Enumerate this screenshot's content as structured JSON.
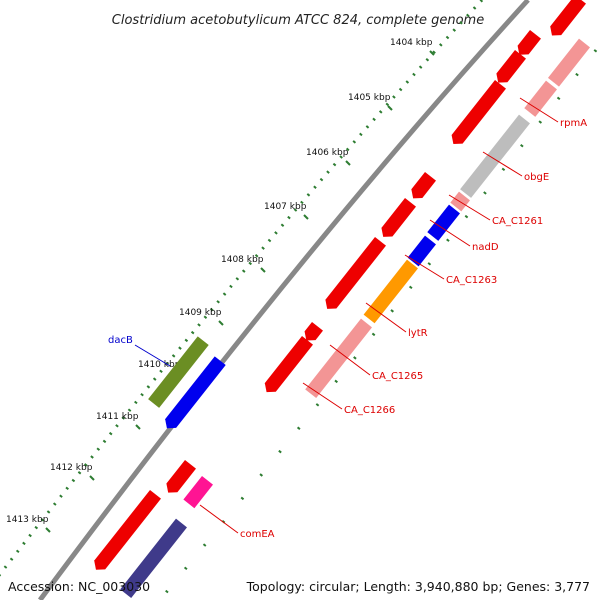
{
  "title": "Clostridium acetobutylicum ATCC 824, complete genome",
  "ticks": [
    "1404 kbp",
    "1405 kbp",
    "1406 kbp",
    "1407 kbp",
    "1408 kbp",
    "1409 kbp",
    "1410 kbp",
    "1411 kbp",
    "1412 kbp",
    "1413 kbp"
  ],
  "genes": [
    {
      "name": "rpmA",
      "color": "#dd0000"
    },
    {
      "name": "obgE",
      "color": "#dd0000"
    },
    {
      "name": "CA_C1261",
      "color": "#dd0000"
    },
    {
      "name": "nadD",
      "color": "#dd0000"
    },
    {
      "name": "CA_C1263",
      "color": "#dd0000"
    },
    {
      "name": "lytR",
      "color": "#dd0000"
    },
    {
      "name": "CA_C1265",
      "color": "#dd0000"
    },
    {
      "name": "CA_C1266",
      "color": "#dd0000"
    },
    {
      "name": "comEA",
      "color": "#dd0000"
    },
    {
      "name": "dacB",
      "color": "#0000cc"
    }
  ],
  "colors": {
    "cds": "#ee0000",
    "cds_light": "#f39595",
    "grey": "#bdbdbd",
    "blue": "#0000ee",
    "orange": "#ff9900",
    "olive": "#6b8e23",
    "magenta": "#ff1493",
    "navy": "#3f3a8a",
    "tick": "#2e7d32",
    "backbone": "#888888"
  },
  "footer": {
    "accession": "Accession: NC_003030",
    "stats": "Topology: circular; Length: 3,940,880 bp; Genes: 3,777"
  }
}
